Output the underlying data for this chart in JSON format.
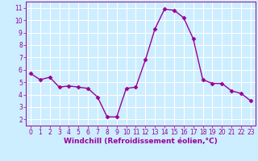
{
  "x": [
    0,
    1,
    2,
    3,
    4,
    5,
    6,
    7,
    8,
    9,
    10,
    11,
    12,
    13,
    14,
    15,
    16,
    17,
    18,
    19,
    20,
    21,
    22,
    23
  ],
  "y": [
    5.7,
    5.2,
    5.4,
    4.6,
    4.7,
    4.6,
    4.5,
    3.8,
    2.2,
    2.2,
    4.5,
    4.6,
    6.8,
    9.3,
    10.9,
    10.8,
    10.2,
    8.5,
    5.2,
    4.9,
    4.9,
    4.3,
    4.1,
    3.5
  ],
  "line_color": "#990099",
  "marker": "D",
  "marker_size": 2.5,
  "xlabel": "Windchill (Refroidissement éolien,°C)",
  "xlabel_fontsize": 6.5,
  "bg_color": "#cceeff",
  "grid_color": "#ffffff",
  "tick_color": "#990099",
  "label_color": "#990099",
  "ylim": [
    1.5,
    11.5
  ],
  "xlim": [
    -0.5,
    23.5
  ],
  "yticks": [
    2,
    3,
    4,
    5,
    6,
    7,
    8,
    9,
    10,
    11
  ],
  "xticks": [
    0,
    1,
    2,
    3,
    4,
    5,
    6,
    7,
    8,
    9,
    10,
    11,
    12,
    13,
    14,
    15,
    16,
    17,
    18,
    19,
    20,
    21,
    22,
    23
  ],
  "tick_labelsize": 5.5,
  "linewidth": 1.0
}
